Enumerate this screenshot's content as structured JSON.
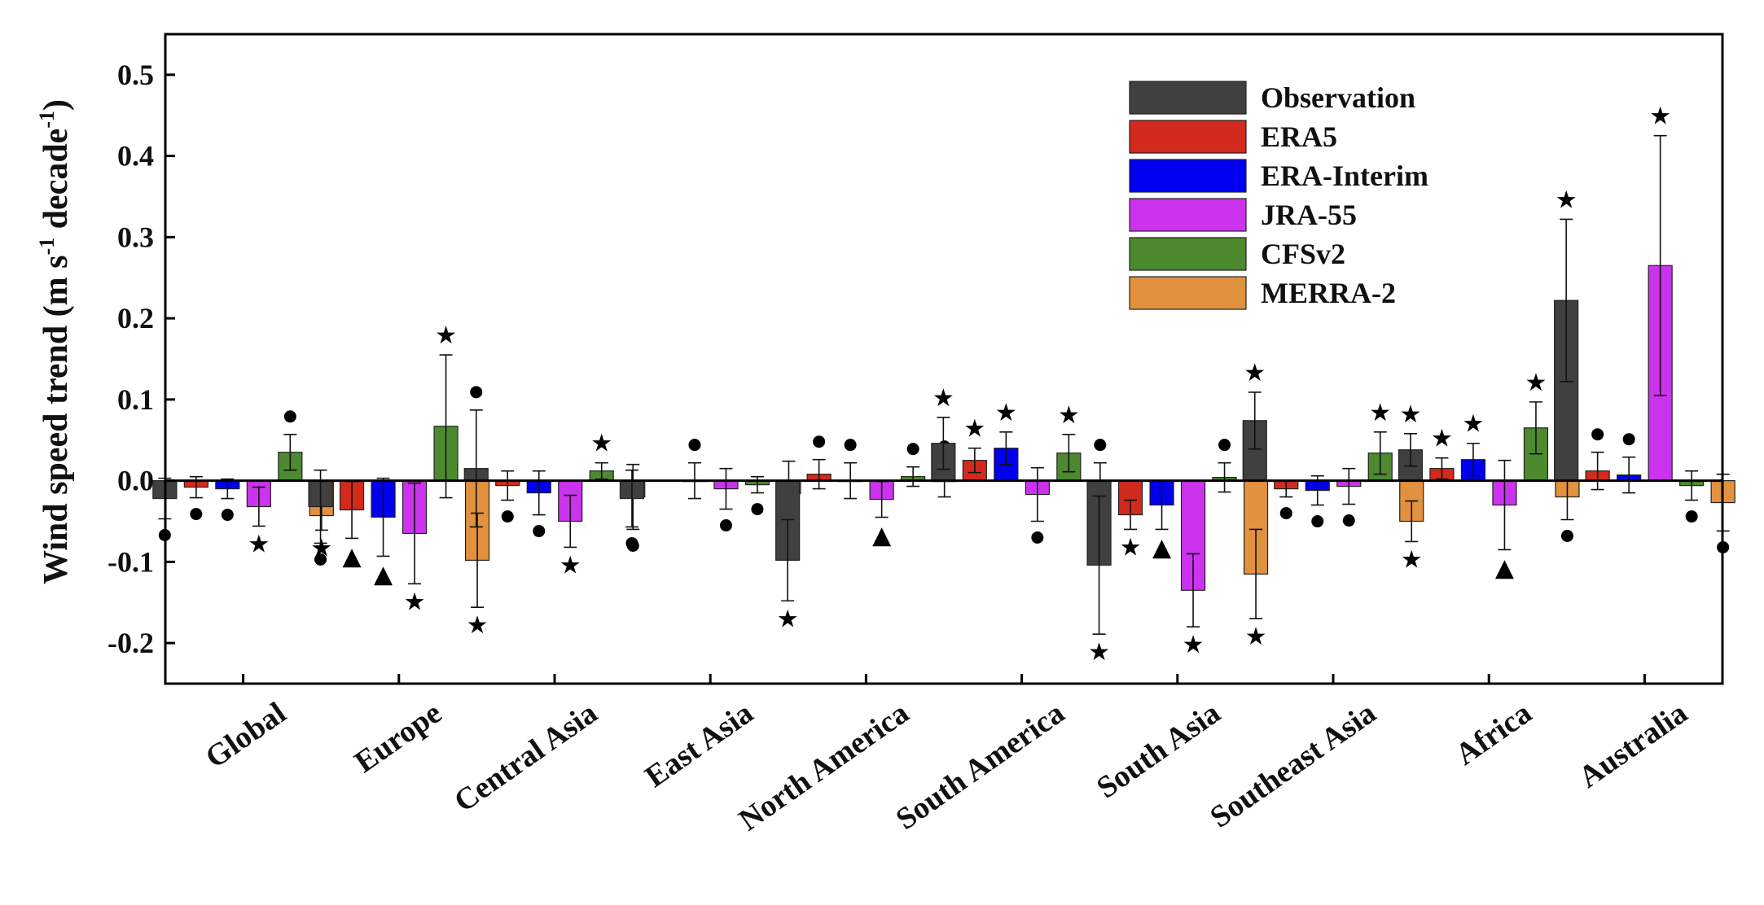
{
  "chart_data": {
    "type": "bar",
    "ylabel": {
      "main": "Wind speed trend (m s",
      "sup1": "-1",
      "mid": " decade",
      "sup2": "-1",
      "end": ")"
    },
    "ylim": [
      -0.25,
      0.55
    ],
    "yticks": [
      -0.2,
      -0.1,
      0.0,
      0.1,
      0.2,
      0.3,
      0.4,
      0.5
    ],
    "ytick_labels": [
      "-0.2",
      "-0.1",
      "0.0",
      "0.1",
      "0.2",
      "0.3",
      "0.4",
      "0.5"
    ],
    "grid": false,
    "legend_position": "top-right",
    "categories": [
      "Global",
      "Europe",
      "Central Asia",
      "East Asia",
      "North America",
      "South America",
      "South Asia",
      "Southeast Asia",
      "Africa",
      "Australia"
    ],
    "series": [
      {
        "name": "Observation",
        "color": "#404040",
        "values": [
          -0.022,
          -0.032,
          0.015,
          -0.022,
          -0.098,
          0.046,
          -0.104,
          0.074,
          0.038,
          0.222
        ],
        "errors": [
          0.025,
          0.045,
          0.072,
          0.035,
          0.05,
          0.032,
          0.085,
          0.035,
          0.02,
          0.1
        ],
        "markers": [
          "dot",
          "dot",
          "dot",
          "dot",
          "star",
          "star",
          "star",
          "star",
          "star",
          "star"
        ]
      },
      {
        "name": "ERA5",
        "color": "#d32a1e",
        "values": [
          -0.008,
          -0.036,
          -0.006,
          null,
          0.008,
          0.025,
          -0.042,
          -0.01,
          0.015,
          0.012
        ],
        "errors": [
          0.013,
          0.035,
          0.018,
          null,
          0.018,
          0.015,
          0.018,
          0.01,
          0.013,
          0.023
        ],
        "markers": [
          "dot",
          "triangle",
          "dot",
          null,
          "dot",
          "star",
          "star",
          "dot",
          "star",
          "dot"
        ]
      },
      {
        "name": "ERA-Interim",
        "color": "#0000ee",
        "values": [
          -0.01,
          -0.045,
          -0.015,
          0.0,
          0.0,
          0.04,
          -0.03,
          -0.012,
          0.026,
          0.007
        ],
        "errors": [
          0.012,
          0.048,
          0.027,
          0.022,
          0.022,
          0.02,
          0.03,
          0.018,
          0.02,
          0.022
        ],
        "markers": [
          "dot",
          "triangle",
          "dot",
          "dot",
          "dot",
          "star",
          "triangle",
          "dot",
          "star",
          "dot"
        ]
      },
      {
        "name": "JRA-55",
        "color": "#cc33ee",
        "values": [
          -0.032,
          -0.065,
          -0.05,
          -0.01,
          -0.023,
          -0.017,
          -0.135,
          -0.007,
          -0.03,
          0.265
        ],
        "errors": [
          0.024,
          0.062,
          0.032,
          0.025,
          0.022,
          0.033,
          0.045,
          0.022,
          0.055,
          0.16
        ],
        "markers": [
          "star",
          "star",
          "star",
          "dot",
          "triangle",
          "dot",
          "star",
          "dot",
          "triangle",
          "star"
        ]
      },
      {
        "name": "CFSv2",
        "color": "#4d8a2f",
        "values": [
          0.035,
          0.067,
          0.012,
          -0.005,
          0.005,
          0.034,
          0.004,
          0.034,
          0.065,
          -0.006
        ],
        "errors": [
          0.022,
          0.088,
          0.01,
          0.01,
          0.012,
          0.023,
          0.018,
          0.026,
          0.032,
          0.018
        ],
        "markers": [
          "dot",
          "star",
          "star",
          "dot",
          "dot",
          "star",
          "dot",
          "star",
          "star",
          "dot"
        ]
      },
      {
        "name": "MERRA-2",
        "color": "#e2913f",
        "values": [
          -0.043,
          -0.098,
          -0.02,
          -0.016,
          0.0,
          0.0,
          -0.115,
          -0.05,
          -0.02,
          -0.027
        ],
        "errors": [
          0.018,
          0.058,
          0.04,
          0.04,
          0.02,
          0.022,
          0.055,
          0.025,
          0.028,
          0.035
        ],
        "markers": [
          "star",
          "star",
          "dot",
          "dot",
          "dot",
          "dot",
          "star",
          "star",
          "dot",
          "dot"
        ]
      }
    ]
  }
}
